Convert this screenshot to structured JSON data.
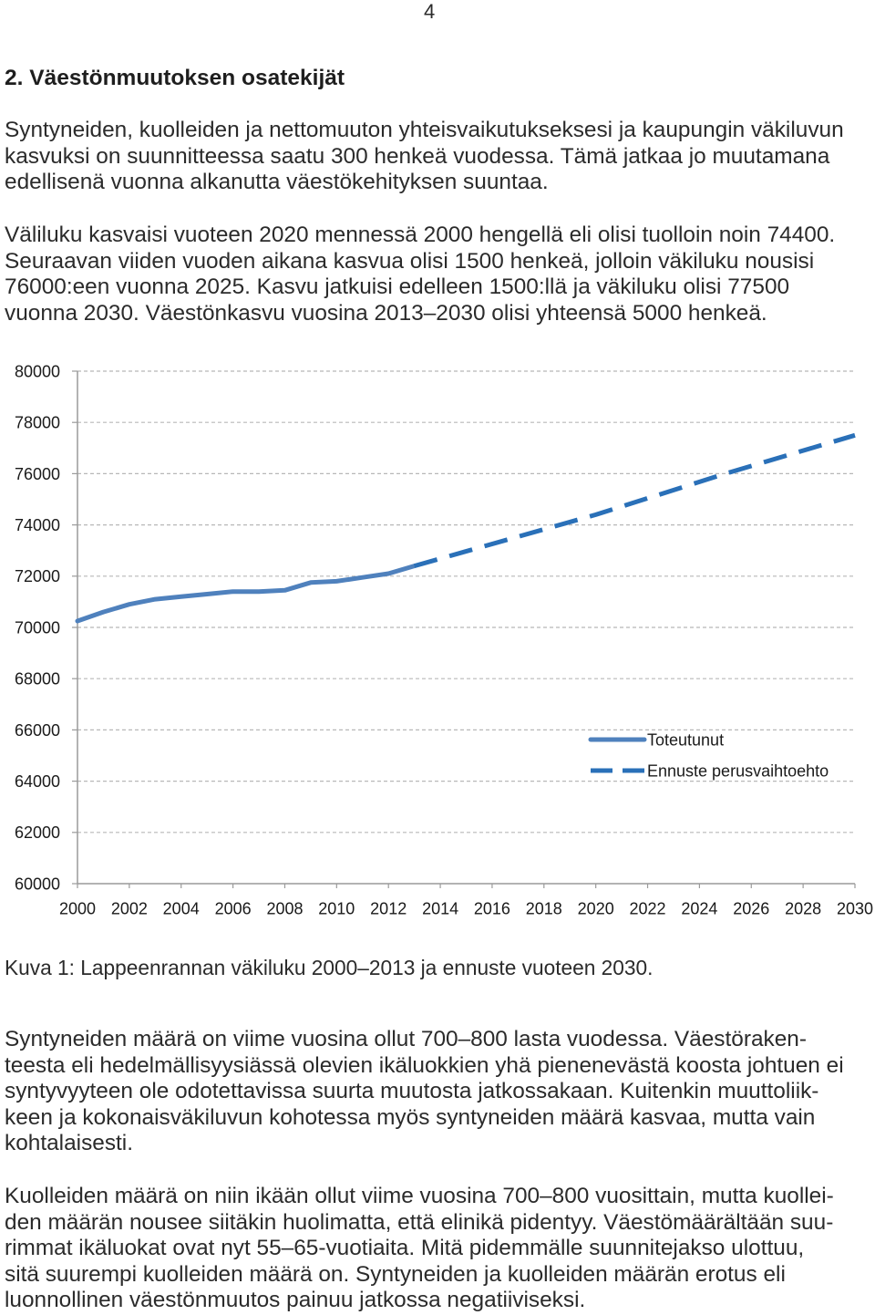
{
  "page_number": "4",
  "heading": "2. Väestönmuutoksen osatekijät",
  "paragraphs": [
    {
      "lines": [
        "Syntyneiden, kuolleiden ja nettomuuton yhteisvaikutukseksesi ja kaupungin väkiluvun",
        "kasvuksi on suunnitteessa saatu 300 henkeä vuodessa. Tämä jatkaa jo muutamana",
        "edellisenä vuonna alkanutta väestökehityksen suuntaa."
      ]
    },
    {
      "lines": [
        "Väliluku kasvaisi vuoteen 2020 mennessä 2000 hengellä eli olisi tuolloin noin 74400.",
        "Seuraavan viiden vuoden aikana kasvua olisi 1500 henkeä, jolloin väkiluku nousisi",
        "76000:een vuonna 2025. Kasvu jatkuisi edelleen 1500:llä ja väkiluku olisi 77500",
        "vuonna 2030. Väestönkasvu vuosina 2013–2030 olisi yhteensä 5000 henkeä."
      ]
    },
    {
      "lines": [
        "Syntyneiden määrä on viime vuosina ollut 700–800 lasta vuodessa. Väestöraken-",
        "teesta eli hedelmällisyysiässä olevien ikäluokkien yhä pienenevästä koosta johtuen ei",
        "syntyvyyteen ole odotettavissa suurta muutosta jatkossakaan. Kuitenkin muuttoliik-",
        "keen ja kokonaisväkiluvun kohotessa myös syntyneiden määrä kasvaa, mutta vain",
        "kohtalaisesti."
      ]
    },
    {
      "lines": [
        "Kuolleiden määrä on niin ikään ollut viime vuosina 700–800 vuosittain, mutta kuollei-",
        "den määrän nousee siitäkin huolimatta, että elinikä pidentyy. Väestömäärältään suu-",
        "rimmat ikäluokat ovat nyt 55–65-vuotiaita. Mitä pidemmälle suunnitejakso ulottuu,",
        "sitä suurempi kuolleiden määrä on. Syntyneiden ja kuolleiden määrän erotus eli",
        "luonnollinen väestönmuutos painuu jatkossa negatiiviseksi."
      ]
    }
  ],
  "caption": "Kuva 1: Lappeenrannan väkiluku 2000–2013 ja ennuste vuoteen 2030.",
  "chart_data": {
    "type": "line",
    "xlim": [
      2000,
      2030
    ],
    "ylim": [
      60000,
      80000
    ],
    "x_ticks": [
      2000,
      2002,
      2004,
      2006,
      2008,
      2010,
      2012,
      2014,
      2016,
      2018,
      2020,
      2022,
      2024,
      2026,
      2028,
      2030
    ],
    "y_ticks": [
      60000,
      62000,
      64000,
      66000,
      68000,
      70000,
      72000,
      74000,
      76000,
      78000,
      80000
    ],
    "grid": true,
    "legend": "right",
    "series": [
      {
        "name": "Toteutunut",
        "style": "solid",
        "color": "#4f81bd",
        "x": [
          2000,
          2001,
          2002,
          2003,
          2004,
          2005,
          2006,
          2007,
          2008,
          2009,
          2010,
          2011,
          2012,
          2013
        ],
        "y": [
          70250,
          70600,
          70900,
          71100,
          71200,
          71300,
          71400,
          71400,
          71450,
          71750,
          71800,
          71950,
          72100,
          72400
        ]
      },
      {
        "name": "Ennuste perusvaihtoehto",
        "style": "dashed",
        "color": "#2a70b8",
        "x": [
          2013,
          2020,
          2025,
          2030
        ],
        "y": [
          72400,
          74400,
          76000,
          77500
        ]
      }
    ]
  }
}
